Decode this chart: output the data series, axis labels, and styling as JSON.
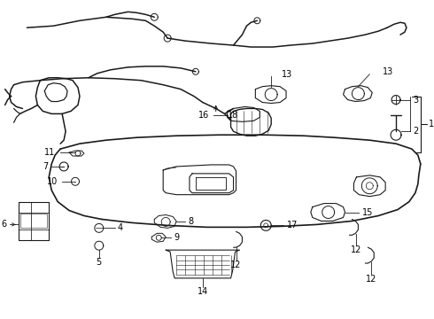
{
  "bg_color": "#ffffff",
  "line_color": "#1a1a1a",
  "label_color": "#000000",
  "figsize": [
    4.9,
    3.6
  ],
  "dpi": 100,
  "lw_harness": 1.1,
  "lw_panel": 1.2,
  "lw_part": 0.8,
  "fs_label": 7.0
}
